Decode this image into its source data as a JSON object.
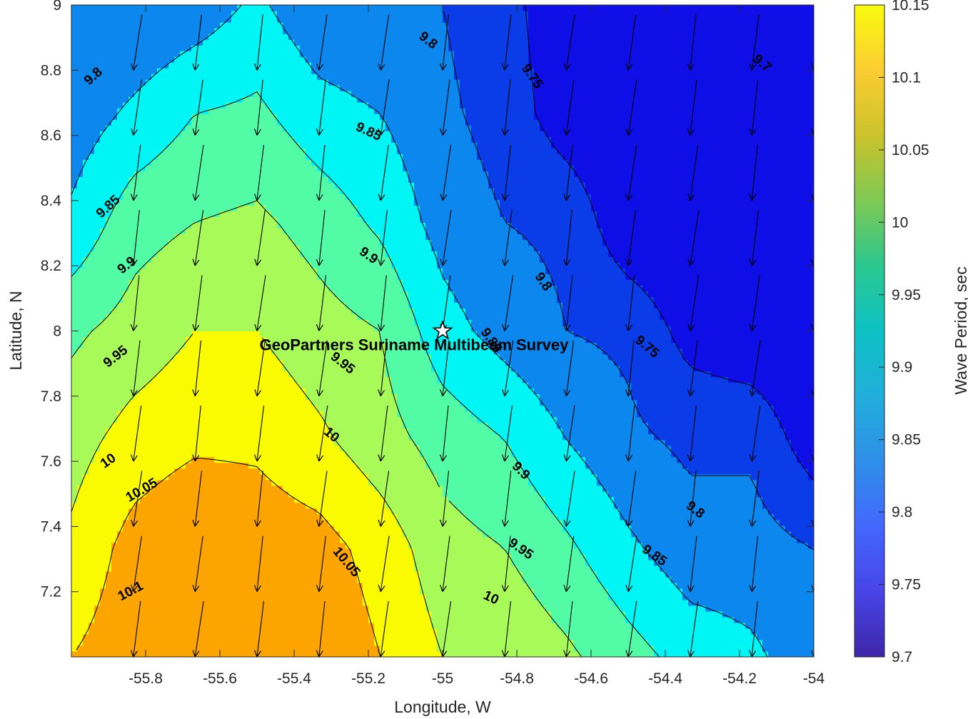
{
  "chart_data": {
    "type": "contour",
    "title": "",
    "xlabel": "Longitude, W",
    "ylabel": "Latitude, N",
    "colorbar_label": "Wave Period, sec",
    "xlim": [
      -56.0,
      -54.0
    ],
    "ylim": [
      7.0,
      9.0
    ],
    "clim": [
      9.7,
      10.15
    ],
    "x_ticks": [
      -55.8,
      -55.6,
      -55.4,
      -55.2,
      -55.0,
      -54.8,
      -54.6,
      -54.4,
      -54.2,
      -54.0
    ],
    "x_tick_labels": [
      "-55.8",
      "-55.6",
      "-55.4",
      "-55.2",
      "-55",
      "-54.8",
      "-54.6",
      "-54.4",
      "-54.2",
      "-54"
    ],
    "y_ticks": [
      7.2,
      7.4,
      7.6,
      7.8,
      8.0,
      8.2,
      8.4,
      8.6,
      8.8,
      9.0
    ],
    "y_tick_labels": [
      "7.2",
      "7.4",
      "7.6",
      "7.8",
      "8",
      "8.2",
      "8.4",
      "8.6",
      "8.8",
      "9"
    ],
    "colorbar_ticks": [
      9.7,
      9.75,
      9.8,
      9.85,
      9.9,
      9.95,
      10.0,
      10.05,
      10.1,
      10.15
    ],
    "colorbar_tick_labels": [
      "9.7",
      "9.75",
      "9.8",
      "9.85",
      "9.9",
      "9.95",
      "10",
      "10.05",
      "10.1",
      "10.15"
    ],
    "colormap": [
      "#3e26a8",
      "#4744e8",
      "#4367fd",
      "#2f8fe9",
      "#21aedb",
      "#0dc1c4",
      "#2bc88f",
      "#7fc954",
      "#cbc32b",
      "#fbcd32",
      "#f9fb0e"
    ],
    "levels": [
      9.7,
      9.75,
      9.8,
      9.85,
      9.9,
      9.95,
      10.0,
      10.05,
      10.1
    ],
    "level_fill_colors": [
      "#0e0ee6",
      "#0a3de8",
      "#0c87ee",
      "#00f5f5",
      "#52fba6",
      "#a8fa58",
      "#fbfb00",
      "#fca400",
      "#fc5500"
    ],
    "grid_x": [
      -56.0,
      -55.833,
      -55.667,
      -55.5,
      -55.333,
      -55.167,
      -55.0,
      -54.833,
      -54.667,
      -54.5,
      -54.333,
      -54.167,
      -54.0
    ],
    "grid_y": [
      7.0,
      7.333,
      7.667,
      8.0,
      8.333,
      8.667,
      9.0
    ],
    "period_grid": [
      [
        10.05,
        10.08,
        10.1,
        10.1,
        10.09,
        10.05,
        10.0,
        9.99,
        9.96,
        9.92,
        9.88,
        9.86,
        9.82
      ],
      [
        10.01,
        10.07,
        10.1,
        10.08,
        10.07,
        10.03,
        9.97,
        9.95,
        9.91,
        9.86,
        9.82,
        9.82,
        9.8
      ],
      [
        9.98,
        10.02,
        10.04,
        10.04,
        10.01,
        9.97,
        9.93,
        9.9,
        9.85,
        9.81,
        9.79,
        9.79,
        9.72
      ],
      [
        9.94,
        9.97,
        10.0,
        10.0,
        9.97,
        9.95,
        9.87,
        9.83,
        9.8,
        9.79,
        9.73,
        9.71,
        9.7
      ],
      [
        9.86,
        9.93,
        9.95,
        9.96,
        9.93,
        9.89,
        9.83,
        9.8,
        9.79,
        9.71,
        9.7,
        9.7,
        9.7
      ],
      [
        9.82,
        9.86,
        9.9,
        9.91,
        9.87,
        9.85,
        9.81,
        9.78,
        9.72,
        9.7,
        9.7,
        9.7,
        9.7
      ],
      [
        9.8,
        9.8,
        9.82,
        9.86,
        9.81,
        9.8,
        9.8,
        9.77,
        9.71,
        9.7,
        9.7,
        9.7,
        9.7
      ]
    ],
    "wave_direction_x": [
      -55.833,
      -55.667,
      -55.5,
      -55.333,
      -55.167,
      -55.0,
      -54.833,
      -54.667,
      -54.5,
      -54.333,
      -54.167,
      -54.0
    ],
    "wave_direction_y": [
      7.0,
      7.2,
      7.4,
      7.6,
      7.8,
      8.0,
      8.2,
      8.4,
      8.6,
      8.8,
      9.0
    ],
    "contour_labels": [
      {
        "text": "9.8",
        "x": -55.94,
        "y": 8.78,
        "rot": -42
      },
      {
        "text": "9.85",
        "x": -55.9,
        "y": 8.38,
        "rot": -42
      },
      {
        "text": "9.9",
        "x": -55.85,
        "y": 8.2,
        "rot": -38
      },
      {
        "text": "9.95",
        "x": -55.88,
        "y": 7.92,
        "rot": -38
      },
      {
        "text": "10",
        "x": -55.9,
        "y": 7.6,
        "rot": -35
      },
      {
        "text": "10.05",
        "x": -55.81,
        "y": 7.51,
        "rot": -30
      },
      {
        "text": "10.1",
        "x": -55.84,
        "y": 7.2,
        "rot": -28
      },
      {
        "text": "9.85",
        "x": -55.2,
        "y": 8.61,
        "rot": 25
      },
      {
        "text": "9.9",
        "x": -55.2,
        "y": 8.23,
        "rot": 35
      },
      {
        "text": "9.95",
        "x": -55.27,
        "y": 7.9,
        "rot": 38
      },
      {
        "text": "10",
        "x": -55.3,
        "y": 7.68,
        "rot": 40
      },
      {
        "text": "10.05",
        "x": -55.26,
        "y": 7.29,
        "rot": 50
      },
      {
        "text": "9.8",
        "x": -55.04,
        "y": 8.89,
        "rot": 38
      },
      {
        "text": "9.75",
        "x": -54.76,
        "y": 8.78,
        "rot": 55
      },
      {
        "text": "9.8",
        "x": -54.73,
        "y": 8.15,
        "rot": 55
      },
      {
        "text": "9.85",
        "x": -54.87,
        "y": 7.97,
        "rot": 55
      },
      {
        "text": "9.9",
        "x": -54.79,
        "y": 7.57,
        "rot": 45
      },
      {
        "text": "9.95",
        "x": -54.79,
        "y": 7.33,
        "rot": 35
      },
      {
        "text": "10",
        "x": -54.87,
        "y": 7.18,
        "rot": 25
      },
      {
        "text": "9.7",
        "x": -54.14,
        "y": 8.82,
        "rot": 40
      },
      {
        "text": "9.75",
        "x": -54.45,
        "y": 7.95,
        "rot": 40
      },
      {
        "text": "9.8",
        "x": -54.32,
        "y": 7.45,
        "rot": 38
      },
      {
        "text": "9.85",
        "x": -54.43,
        "y": 7.31,
        "rot": 35
      }
    ],
    "marker": {
      "symbol": "star",
      "x": -55.0,
      "y": 8.0,
      "label": "GeoPartners Suriname Multibeam Survey"
    }
  }
}
